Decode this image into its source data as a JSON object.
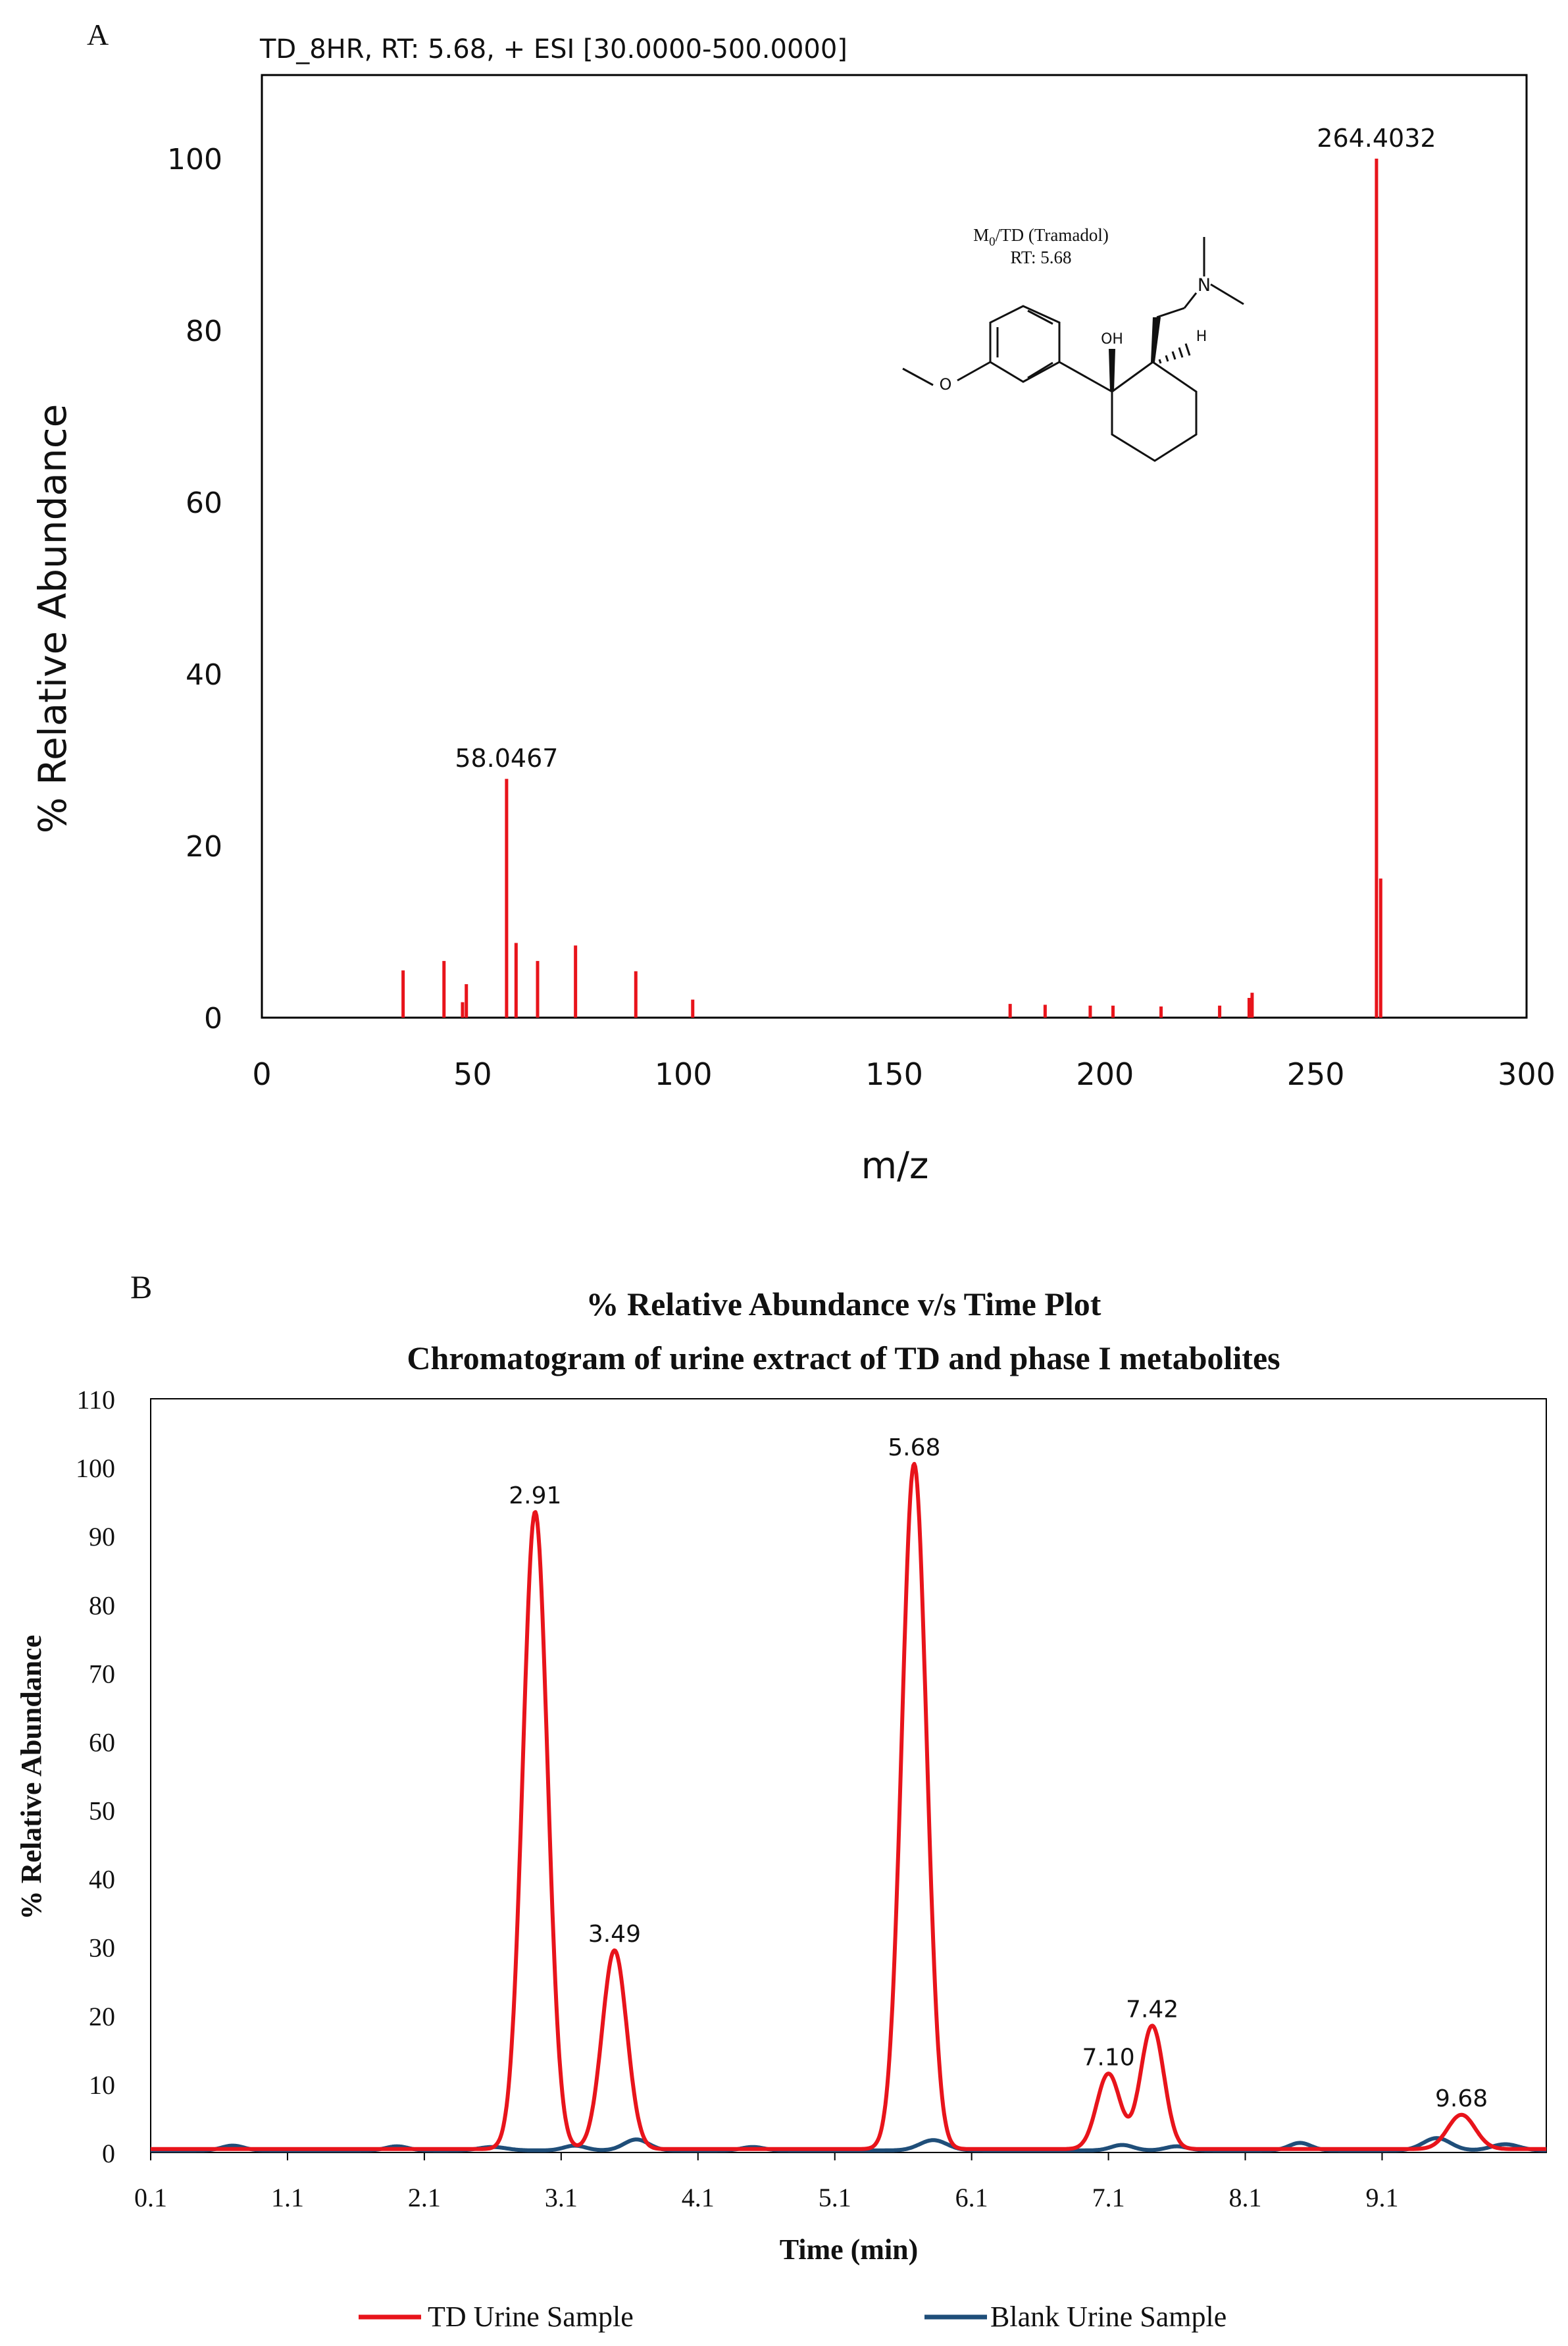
{
  "chart_data": [
    {
      "panel_label": "A",
      "type": "bar",
      "header": "TD_8HR,  RT: 5.68, + ESI [30.0000-500.0000]",
      "title": "",
      "xlabel": "m/z",
      "ylabel": "% Relative Abundance",
      "xlim": [
        0,
        300
      ],
      "ylim": [
        0,
        110
      ],
      "xticks": [
        "0",
        "50",
        "100",
        "150",
        "200",
        "250",
        "300"
      ],
      "yticks": [
        "0",
        "20",
        "40",
        "60",
        "80",
        "100"
      ],
      "grid": false,
      "color": "#e8141b",
      "peaks": [
        {
          "mz": 33.5,
          "abundance": 5.5
        },
        {
          "mz": 43.2,
          "abundance": 6.6
        },
        {
          "mz": 47.6,
          "abundance": 1.8
        },
        {
          "mz": 48.5,
          "abundance": 3.9
        },
        {
          "mz": 58.0467,
          "abundance": 27.8
        },
        {
          "mz": 60.3,
          "abundance": 8.7
        },
        {
          "mz": 65.4,
          "abundance": 6.6
        },
        {
          "mz": 74.4,
          "abundance": 8.4
        },
        {
          "mz": 88.7,
          "abundance": 5.4
        },
        {
          "mz": 102.2,
          "abundance": 2.1
        },
        {
          "mz": 177.5,
          "abundance": 1.6
        },
        {
          "mz": 185.8,
          "abundance": 1.5
        },
        {
          "mz": 196.5,
          "abundance": 1.4
        },
        {
          "mz": 201.9,
          "abundance": 1.4
        },
        {
          "mz": 213.3,
          "abundance": 1.3
        },
        {
          "mz": 227.2,
          "abundance": 1.4
        },
        {
          "mz": 234.2,
          "abundance": 2.3
        },
        {
          "mz": 234.9,
          "abundance": 2.9
        },
        {
          "mz": 264.4032,
          "abundance": 100
        },
        {
          "mz": 265.4,
          "abundance": 16.2
        }
      ],
      "peak_labels": [
        {
          "text": "58.0467",
          "mz": 58.0467,
          "abundance": 27.8
        },
        {
          "text": "264.4032",
          "mz": 264.4032,
          "abundance": 100
        }
      ],
      "structure": {
        "name_prefix": "M",
        "name_subscript": "0",
        "name_suffix": "/TD (Tramadol)",
        "rt_text": "RT: 5.68",
        "atom_n": "N",
        "atom_oh": "OH",
        "atom_h": "H",
        "atom_o": "O"
      }
    },
    {
      "panel_label": "B",
      "type": "line",
      "title": "% Relative Abundance v/s Time Plot",
      "subtitle": "Chromatogram of urine extract of TD and phase I metabolites",
      "xlabel": "Time (min)",
      "ylabel": "% Relative Abundance",
      "xlim": [
        0.1,
        10.3
      ],
      "ylim": [
        0,
        110
      ],
      "xticks": [
        "0.1",
        "1.1",
        "2.1",
        "3.1",
        "4.1",
        "5.1",
        "6.1",
        "7.1",
        "8.1",
        "9.1"
      ],
      "yticks": [
        "0",
        "10",
        "20",
        "30",
        "40",
        "50",
        "60",
        "70",
        "80",
        "90",
        "100",
        "110"
      ],
      "grid": false,
      "legend_position": "bottom",
      "series": [
        {
          "name": "TD Urine Sample",
          "color": "#e8141b",
          "baseline": 0.5,
          "peaks": [
            {
              "rt": 2.91,
              "height": 93,
              "width": 0.09
            },
            {
              "rt": 3.49,
              "height": 29,
              "width": 0.09
            },
            {
              "rt": 5.68,
              "height": 100,
              "width": 0.09
            },
            {
              "rt": 7.1,
              "height": 11,
              "width": 0.085
            },
            {
              "rt": 7.42,
              "height": 18,
              "width": 0.085
            },
            {
              "rt": 9.68,
              "height": 5,
              "width": 0.1
            }
          ]
        },
        {
          "name": "Blank Urine Sample",
          "color": "#1f4e79",
          "baseline": 0.3,
          "peaks": [
            {
              "rt": 0.7,
              "height": 0.7,
              "width": 0.08
            },
            {
              "rt": 1.9,
              "height": 0.6,
              "width": 0.08
            },
            {
              "rt": 2.6,
              "height": 0.5,
              "width": 0.1
            },
            {
              "rt": 3.2,
              "height": 0.7,
              "width": 0.08
            },
            {
              "rt": 3.65,
              "height": 1.6,
              "width": 0.09
            },
            {
              "rt": 4.5,
              "height": 0.5,
              "width": 0.08
            },
            {
              "rt": 5.82,
              "height": 1.5,
              "width": 0.1
            },
            {
              "rt": 7.2,
              "height": 0.8,
              "width": 0.08
            },
            {
              "rt": 7.6,
              "height": 0.6,
              "width": 0.08
            },
            {
              "rt": 8.5,
              "height": 1.1,
              "width": 0.08
            },
            {
              "rt": 9.5,
              "height": 1.8,
              "width": 0.1
            },
            {
              "rt": 10.0,
              "height": 0.9,
              "width": 0.1
            }
          ]
        }
      ],
      "peak_labels": [
        {
          "text": "2.91",
          "rt": 2.91,
          "height": 93
        },
        {
          "text": "3.49",
          "rt": 3.49,
          "height": 29
        },
        {
          "text": "5.68",
          "rt": 5.68,
          "height": 100
        },
        {
          "text": "7.10",
          "rt": 7.1,
          "height": 11
        },
        {
          "text": "7.42",
          "rt": 7.42,
          "height": 18
        },
        {
          "text": "9.68",
          "rt": 9.68,
          "height": 5
        }
      ]
    }
  ]
}
